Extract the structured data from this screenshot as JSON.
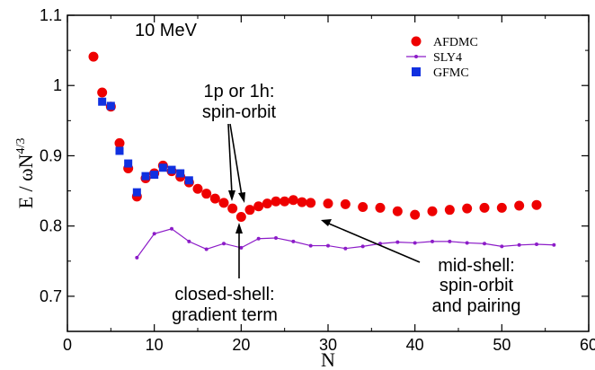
{
  "chart_data": {
    "type": "scatter",
    "xlabel": "N",
    "ylabel_main": "E / ωN",
    "ylabel_sup": "4/3",
    "xlim": [
      0,
      60
    ],
    "ylim": [
      0.65,
      1.1
    ],
    "xticks": [
      0,
      10,
      20,
      30,
      40,
      50,
      60
    ],
    "yticks": [
      0.7,
      0.8,
      0.9,
      1,
      1.1
    ],
    "ytick_labels": [
      "0.7",
      "0.8",
      "0.9",
      "1",
      "1.1"
    ],
    "legend_position": "top-right",
    "annotation_energy": "10 MeV",
    "annotation_spin_orbit": [
      "1p or 1h:",
      "spin-orbit"
    ],
    "annotation_closed_shell": [
      "closed-shell:",
      "gradient term"
    ],
    "annotation_mid_shell": [
      "mid-shell:",
      "spin-orbit",
      "and pairing"
    ],
    "series": [
      {
        "name": "AFDMC",
        "marker": "circle",
        "color": "#ee0000",
        "points": [
          [
            3,
            1.041
          ],
          [
            4,
            0.99
          ],
          [
            5,
            0.97
          ],
          [
            6,
            0.918
          ],
          [
            7,
            0.882
          ],
          [
            8,
            0.842
          ],
          [
            9,
            0.868
          ],
          [
            10,
            0.875
          ],
          [
            11,
            0.886
          ],
          [
            12,
            0.878
          ],
          [
            13,
            0.87
          ],
          [
            14,
            0.862
          ],
          [
            15,
            0.853
          ],
          [
            16,
            0.846
          ],
          [
            17,
            0.839
          ],
          [
            18,
            0.833
          ],
          [
            19,
            0.825
          ],
          [
            20,
            0.813
          ],
          [
            21,
            0.823
          ],
          [
            22,
            0.828
          ],
          [
            23,
            0.832
          ],
          [
            24,
            0.835
          ],
          [
            25,
            0.835
          ],
          [
            26,
            0.837
          ],
          [
            27,
            0.834
          ],
          [
            28,
            0.833
          ],
          [
            30,
            0.832
          ],
          [
            32,
            0.831
          ],
          [
            34,
            0.827
          ],
          [
            36,
            0.826
          ],
          [
            38,
            0.821
          ],
          [
            40,
            0.816
          ],
          [
            42,
            0.821
          ],
          [
            44,
            0.823
          ],
          [
            46,
            0.825
          ],
          [
            48,
            0.826
          ],
          [
            50,
            0.826
          ],
          [
            52,
            0.829
          ],
          [
            54,
            0.83
          ]
        ]
      },
      {
        "name": "SLY4",
        "marker": "line-dot",
        "color": "#8c1cc8",
        "points": [
          [
            8,
            0.755
          ],
          [
            10,
            0.789
          ],
          [
            12,
            0.796
          ],
          [
            14,
            0.778
          ],
          [
            16,
            0.767
          ],
          [
            18,
            0.775
          ],
          [
            20,
            0.769
          ],
          [
            22,
            0.782
          ],
          [
            24,
            0.783
          ],
          [
            26,
            0.778
          ],
          [
            28,
            0.772
          ],
          [
            30,
            0.772
          ],
          [
            32,
            0.768
          ],
          [
            34,
            0.771
          ],
          [
            36,
            0.775
          ],
          [
            38,
            0.777
          ],
          [
            40,
            0.776
          ],
          [
            42,
            0.778
          ],
          [
            44,
            0.778
          ],
          [
            46,
            0.776
          ],
          [
            48,
            0.775
          ],
          [
            50,
            0.771
          ],
          [
            52,
            0.773
          ],
          [
            54,
            0.774
          ],
          [
            56,
            0.773
          ]
        ]
      },
      {
        "name": "GFMC",
        "marker": "square",
        "color": "#1030e0",
        "points": [
          [
            4,
            0.977
          ],
          [
            5,
            0.971
          ],
          [
            6,
            0.907
          ],
          [
            7,
            0.889
          ],
          [
            8,
            0.848
          ],
          [
            9,
            0.871
          ],
          [
            10,
            0.873
          ],
          [
            11,
            0.883
          ],
          [
            12,
            0.88
          ],
          [
            13,
            0.875
          ],
          [
            14,
            0.865
          ]
        ]
      }
    ]
  }
}
